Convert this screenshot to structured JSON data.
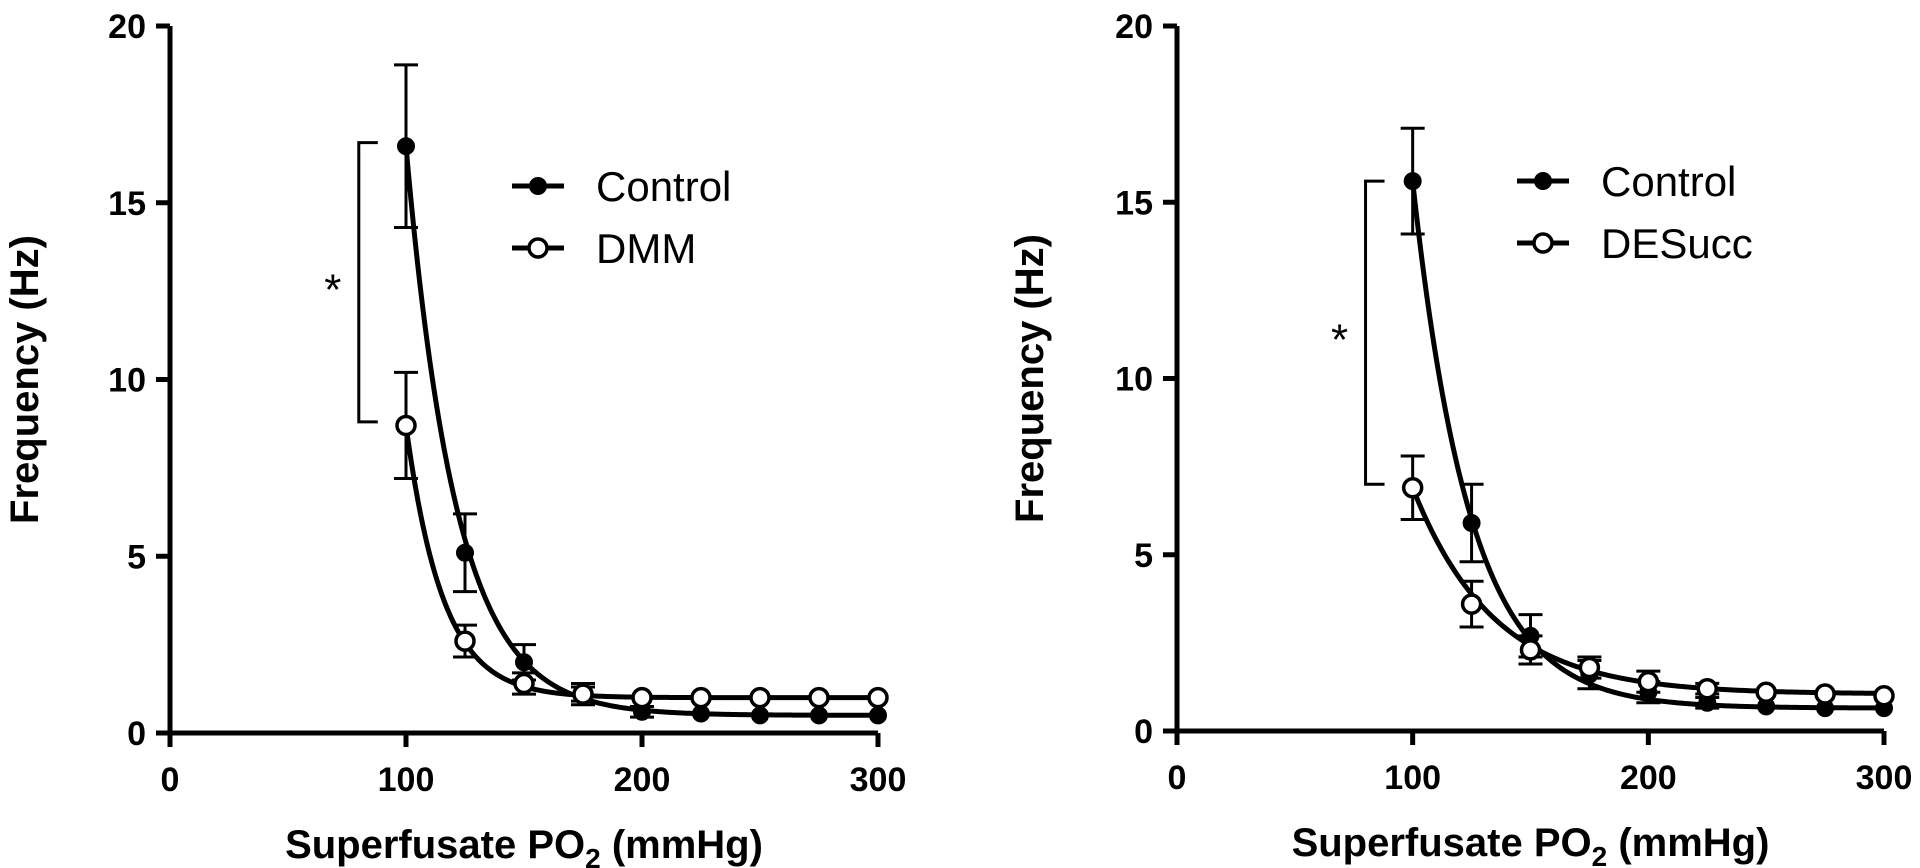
{
  "colors": {
    "ink": "#000000",
    "background": "#ffffff",
    "open_fill": "#ffffff"
  },
  "chart_data": [
    {
      "type": "line",
      "panel": "left",
      "title": "",
      "xlabel": "Superfusate PO",
      "xlabel_sub": "2",
      "xlabel_tail": " (mmHg)",
      "ylabel": "Frequency (Hz)",
      "xlim": [
        0,
        300
      ],
      "ylim": [
        0,
        20
      ],
      "xticks": [
        0,
        100,
        200,
        300
      ],
      "yticks": [
        0,
        5,
        10,
        15,
        20
      ],
      "grid": false,
      "legend_position": "top-right",
      "significance": {
        "label": "*",
        "y_range": [
          8.8,
          16.7
        ],
        "x": 80
      },
      "series": [
        {
          "name": "Control",
          "marker": "filled-circle",
          "x": [
            100,
            125,
            150,
            175,
            200,
            225,
            250,
            275,
            300
          ],
          "y": [
            16.6,
            5.1,
            2.0,
            1.1,
            0.6,
            0.55,
            0.5,
            0.5,
            0.5
          ],
          "error": [
            2.3,
            1.1,
            0.5,
            0.3,
            0.15,
            0.1,
            0.1,
            0.1,
            0.1
          ],
          "fit": {
            "model": "exponential-decay",
            "plateau": 0.5,
            "span": 16.1,
            "k": 0.047,
            "x0": 100
          }
        },
        {
          "name": "DMM",
          "marker": "open-circle",
          "x": [
            100,
            125,
            150,
            175,
            200,
            225,
            250,
            275,
            300
          ],
          "y": [
            8.7,
            2.6,
            1.4,
            1.1,
            1.0,
            1.0,
            1.0,
            1.0,
            1.0
          ],
          "error": [
            1.5,
            0.45,
            0.3,
            0.2,
            0.1,
            0.1,
            0.1,
            0.1,
            0.1
          ],
          "fit": {
            "model": "exponential-decay",
            "plateau": 1.0,
            "span": 7.7,
            "k": 0.064,
            "x0": 100
          }
        }
      ]
    },
    {
      "type": "line",
      "panel": "right",
      "title": "",
      "xlabel": "Superfusate PO",
      "xlabel_sub": "2",
      "xlabel_tail": " (mmHg)",
      "ylabel": "Frequency (Hz)",
      "xlim": [
        0,
        300
      ],
      "ylim": [
        0,
        20
      ],
      "xticks": [
        0,
        100,
        200,
        300
      ],
      "yticks": [
        0,
        5,
        10,
        15,
        20
      ],
      "grid": false,
      "legend_position": "top-right",
      "significance": {
        "label": "*",
        "y_range": [
          7.0,
          15.6
        ],
        "x": 80
      },
      "series": [
        {
          "name": "Control",
          "marker": "filled-circle",
          "x": [
            100,
            125,
            150,
            175,
            200,
            225,
            250,
            275,
            300
          ],
          "y": [
            15.6,
            5.9,
            2.7,
            1.6,
            1.1,
            0.8,
            0.7,
            0.65,
            0.65
          ],
          "error": [
            1.5,
            1.1,
            0.6,
            0.4,
            0.3,
            0.15,
            0.1,
            0.1,
            0.1
          ],
          "fit": {
            "model": "exponential-decay",
            "plateau": 0.65,
            "span": 14.95,
            "k": 0.041,
            "x0": 100
          }
        },
        {
          "name": "DESucc",
          "marker": "open-circle",
          "x": [
            100,
            125,
            150,
            175,
            200,
            225,
            250,
            275,
            300
          ],
          "y": [
            6.9,
            3.6,
            2.3,
            1.8,
            1.4,
            1.2,
            1.1,
            1.05,
            1.0
          ],
          "error": [
            0.9,
            0.65,
            0.4,
            0.3,
            0.3,
            0.15,
            0.1,
            0.1,
            0.1
          ],
          "fit": {
            "model": "exponential-decay",
            "plateau": 1.05,
            "span": 5.85,
            "k": 0.029,
            "x0": 100
          }
        }
      ]
    }
  ]
}
